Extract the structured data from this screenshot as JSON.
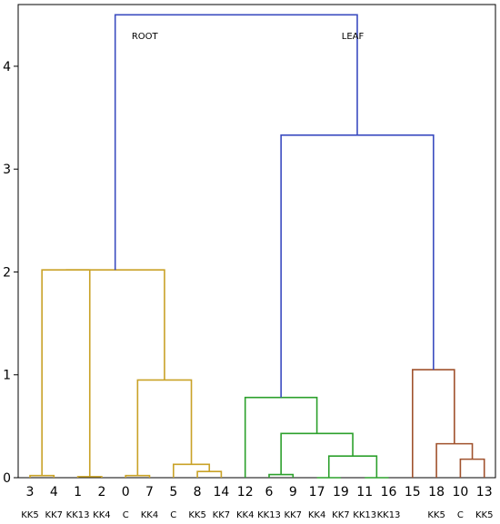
{
  "chart_data": {
    "type": "dendrogram",
    "title": "",
    "xlabel": "",
    "ylabel": "",
    "ylim": [
      0,
      4.6
    ],
    "yticks": [
      0,
      1,
      2,
      3,
      4
    ],
    "grid": false,
    "leaves": [
      {
        "label": "3",
        "group": "KK5"
      },
      {
        "label": "4",
        "group": "KK7"
      },
      {
        "label": "1",
        "group": "KK13"
      },
      {
        "label": "2",
        "group": "KK4"
      },
      {
        "label": "0",
        "group": "C"
      },
      {
        "label": "7",
        "group": "KK4"
      },
      {
        "label": "5",
        "group": "C"
      },
      {
        "label": "8",
        "group": "KK5"
      },
      {
        "label": "14",
        "group": "KK7"
      },
      {
        "label": "12",
        "group": "KK4"
      },
      {
        "label": "6",
        "group": "KK13"
      },
      {
        "label": "9",
        "group": "KK7"
      },
      {
        "label": "17",
        "group": "KK4"
      },
      {
        "label": "19",
        "group": "KK7"
      },
      {
        "label": "11",
        "group": "KK13"
      },
      {
        "label": "16",
        "group": "KK13"
      },
      {
        "label": "15",
        "group": ""
      },
      {
        "label": "18",
        "group": "KK5"
      },
      {
        "label": "10",
        "group": "C"
      },
      {
        "label": "13",
        "group": "KK5"
      }
    ],
    "merges": [
      {
        "left": 0,
        "right": 1,
        "height": 0.02,
        "color": "#c9a227"
      },
      {
        "left": 2,
        "right": 3,
        "height": 0.01,
        "color": "#c9a227"
      },
      {
        "left": 20,
        "right": 21,
        "height": 2.02,
        "color": "#c9a227"
      },
      {
        "left": 4,
        "right": 5,
        "height": 0.02,
        "color": "#c9a227"
      },
      {
        "left": 7,
        "right": 8,
        "height": 0.06,
        "color": "#c9a227"
      },
      {
        "left": 6,
        "right": 24,
        "height": 0.13,
        "color": "#c9a227"
      },
      {
        "left": 23,
        "right": 25,
        "height": 0.95,
        "color": "#c9a227"
      },
      {
        "left": 22,
        "right": 26,
        "height": 2.02,
        "color": "#c9a227"
      },
      {
        "left": 10,
        "right": 11,
        "height": 0.03,
        "color": "#2ca02c"
      },
      {
        "left": 12,
        "right": 13,
        "height": 0.0,
        "color": "#2ca02c"
      },
      {
        "left": 14,
        "right": 15,
        "height": 0.0,
        "color": "#2ca02c"
      },
      {
        "left": 29,
        "right": 30,
        "height": 0.21,
        "color": "#2ca02c"
      },
      {
        "left": 28,
        "right": 31,
        "height": 0.43,
        "color": "#2ca02c"
      },
      {
        "left": 9,
        "right": 32,
        "height": 0.78,
        "color": "#2ca02c"
      },
      {
        "left": 18,
        "right": 19,
        "height": 0.18,
        "color": "#a0522d"
      },
      {
        "left": 17,
        "right": 34,
        "height": 0.33,
        "color": "#a0522d"
      },
      {
        "left": 16,
        "right": 35,
        "height": 1.05,
        "color": "#a0522d"
      },
      {
        "left": 33,
        "right": 36,
        "height": 3.33,
        "color": "#3b4cc0"
      },
      {
        "left": 27,
        "right": 37,
        "height": 4.5,
        "color": "#3b4cc0"
      }
    ],
    "annotations": [
      {
        "text": "ROOT",
        "x": 4.8,
        "y": 4.3
      },
      {
        "text": "LEAF",
        "x": 13.5,
        "y": 4.3
      }
    ]
  }
}
